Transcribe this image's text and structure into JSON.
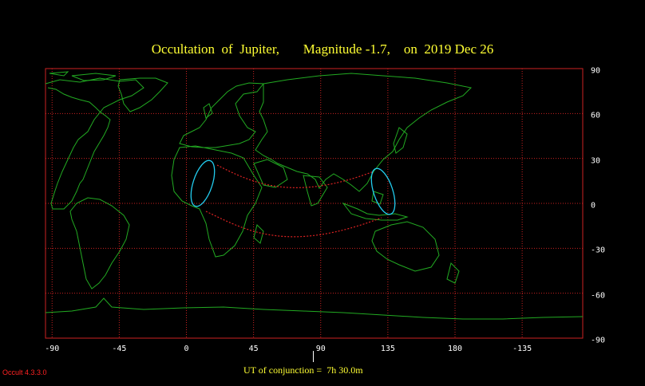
{
  "title": "Occultation  of  Jupiter,       Magnitude -1.7,    on  2019 Dec 26",
  "map": {
    "x_ticks": [
      "-90",
      "-45",
      "0",
      "45",
      "90",
      "135",
      "180",
      "-135"
    ],
    "y_ticks": [
      "90",
      "60",
      "30",
      "0",
      "-30",
      "-60",
      "-90"
    ]
  },
  "conjunction": "UT of conjunction =  7h 30.0m",
  "version": "Occult 4.3.3.0",
  "colors": {
    "background": "#000000",
    "grid": "#cc2222",
    "coast": "#22aa22",
    "path_limits": "#dd2222",
    "visibility": "#22ccee",
    "text": "#ffff33"
  }
}
